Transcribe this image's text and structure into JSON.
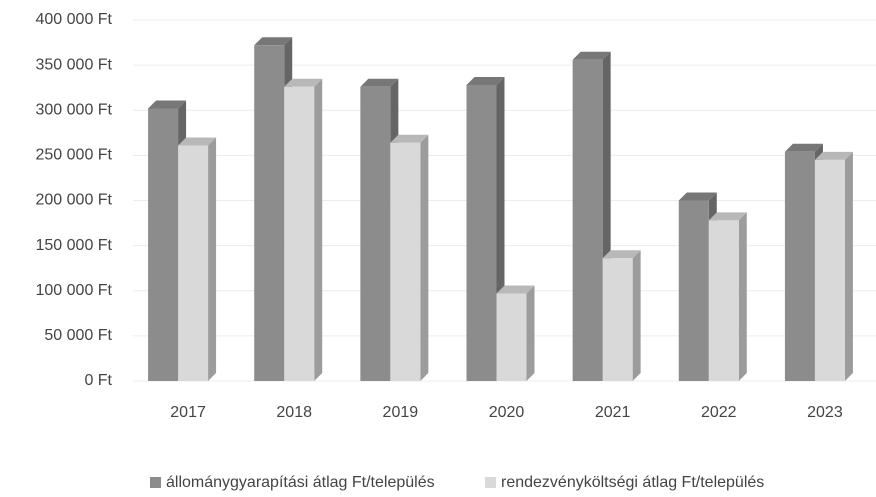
{
  "chart_data": {
    "type": "bar3d",
    "categories": [
      "2017",
      "2018",
      "2019",
      "2020",
      "2021",
      "2022",
      "2023"
    ],
    "series": [
      {
        "name": "állománygyarapítási átlag Ft/település",
        "color": "#8c8c8c",
        "values": [
          302000,
          372000,
          326000,
          328000,
          356000,
          200000,
          254000
        ]
      },
      {
        "name": "rendezvényköltségi átlag Ft/település",
        "color": "#d9d9d9",
        "values": [
          261000,
          326000,
          264000,
          97000,
          136000,
          178000,
          245000
        ]
      }
    ],
    "ylim": [
      0,
      400000
    ],
    "yticks": [
      {
        "value": 0,
        "label": "0 Ft"
      },
      {
        "value": 50000,
        "label": "50 000 Ft"
      },
      {
        "value": 100000,
        "label": "100 000 Ft"
      },
      {
        "value": 150000,
        "label": "150 000 Ft"
      },
      {
        "value": 200000,
        "label": "200 000 Ft"
      },
      {
        "value": 250000,
        "label": "250 000 Ft"
      },
      {
        "value": 300000,
        "label": "300 000 Ft"
      },
      {
        "value": 350000,
        "label": "350 000 Ft"
      },
      {
        "value": 400000,
        "label": "400 000 Ft"
      }
    ],
    "grid": true,
    "legend": "bottom"
  }
}
